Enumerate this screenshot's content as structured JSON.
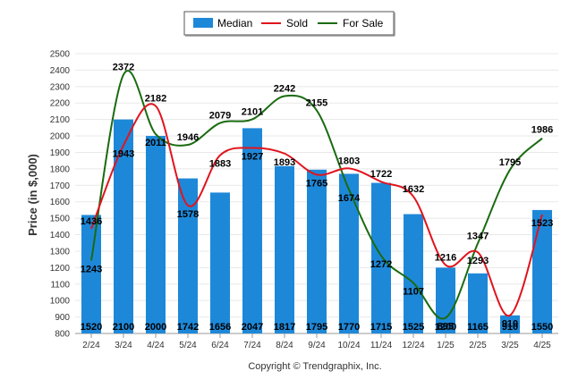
{
  "chart_data": {
    "type": "bar",
    "ylabel": "Price (in $,000)",
    "ylim": [
      800,
      2500
    ],
    "yticks": [
      800,
      900,
      1000,
      1100,
      1200,
      1300,
      1400,
      1500,
      1600,
      1700,
      1800,
      1900,
      2000,
      2100,
      2200,
      2300,
      2400,
      2500
    ],
    "categories": [
      "2/24",
      "3/24",
      "4/24",
      "5/24",
      "6/24",
      "7/24",
      "8/24",
      "9/24",
      "10/24",
      "11/24",
      "12/24",
      "1/25",
      "2/25",
      "3/25",
      "4/25"
    ],
    "legend_position": "top-center",
    "grid": true,
    "series": [
      {
        "name": "Median",
        "type": "bar",
        "color": "#1e88d8",
        "values": [
          1520,
          2100,
          2000,
          1742,
          1656,
          2047,
          1817,
          1795,
          1770,
          1715,
          1525,
          1200,
          1165,
          910,
          1550
        ]
      },
      {
        "name": "Sold",
        "type": "line",
        "color": "#e0141e",
        "values": [
          1436,
          1943,
          2182,
          1578,
          1883,
          1927,
          1893,
          1765,
          1803,
          1722,
          1632,
          1216,
          1293,
          910,
          1523
        ]
      },
      {
        "name": "For Sale",
        "type": "line",
        "color": "#1a6b10",
        "values": [
          1243,
          2372,
          2011,
          1946,
          2079,
          2101,
          2242,
          2155,
          1674,
          1272,
          1107,
          895,
          1347,
          1795,
          1986
        ]
      }
    ],
    "footer": "Copyright © Trendgraphix, Inc."
  }
}
